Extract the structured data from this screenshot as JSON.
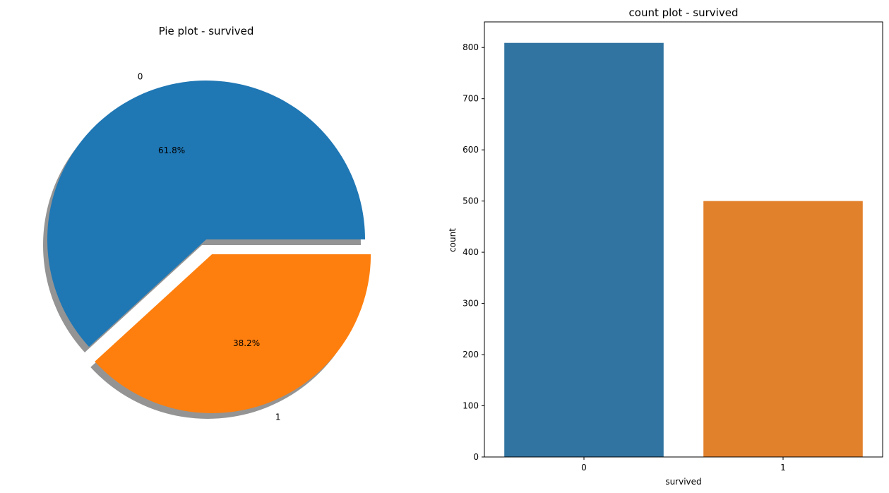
{
  "chart_data": [
    {
      "type": "pie",
      "title": "Pie plot - survived",
      "labels": [
        "0",
        "1"
      ],
      "values": [
        61.8,
        38.2
      ],
      "value_labels": [
        "61.8%",
        "38.2%"
      ],
      "explode": [
        0,
        0.1
      ],
      "shadow": true,
      "colors": [
        "#1f77b4",
        "#ff7f0e"
      ]
    },
    {
      "type": "bar",
      "title": "count plot - survived",
      "xlabel": "survived",
      "ylabel": "count",
      "categories": [
        "0",
        "1"
      ],
      "values": [
        809,
        500
      ],
      "ylim": [
        0,
        850
      ],
      "yticks": [
        0,
        100,
        200,
        300,
        400,
        500,
        600,
        700,
        800
      ],
      "grid": false,
      "colors": [
        "#3274a1",
        "#e1812c"
      ]
    }
  ]
}
